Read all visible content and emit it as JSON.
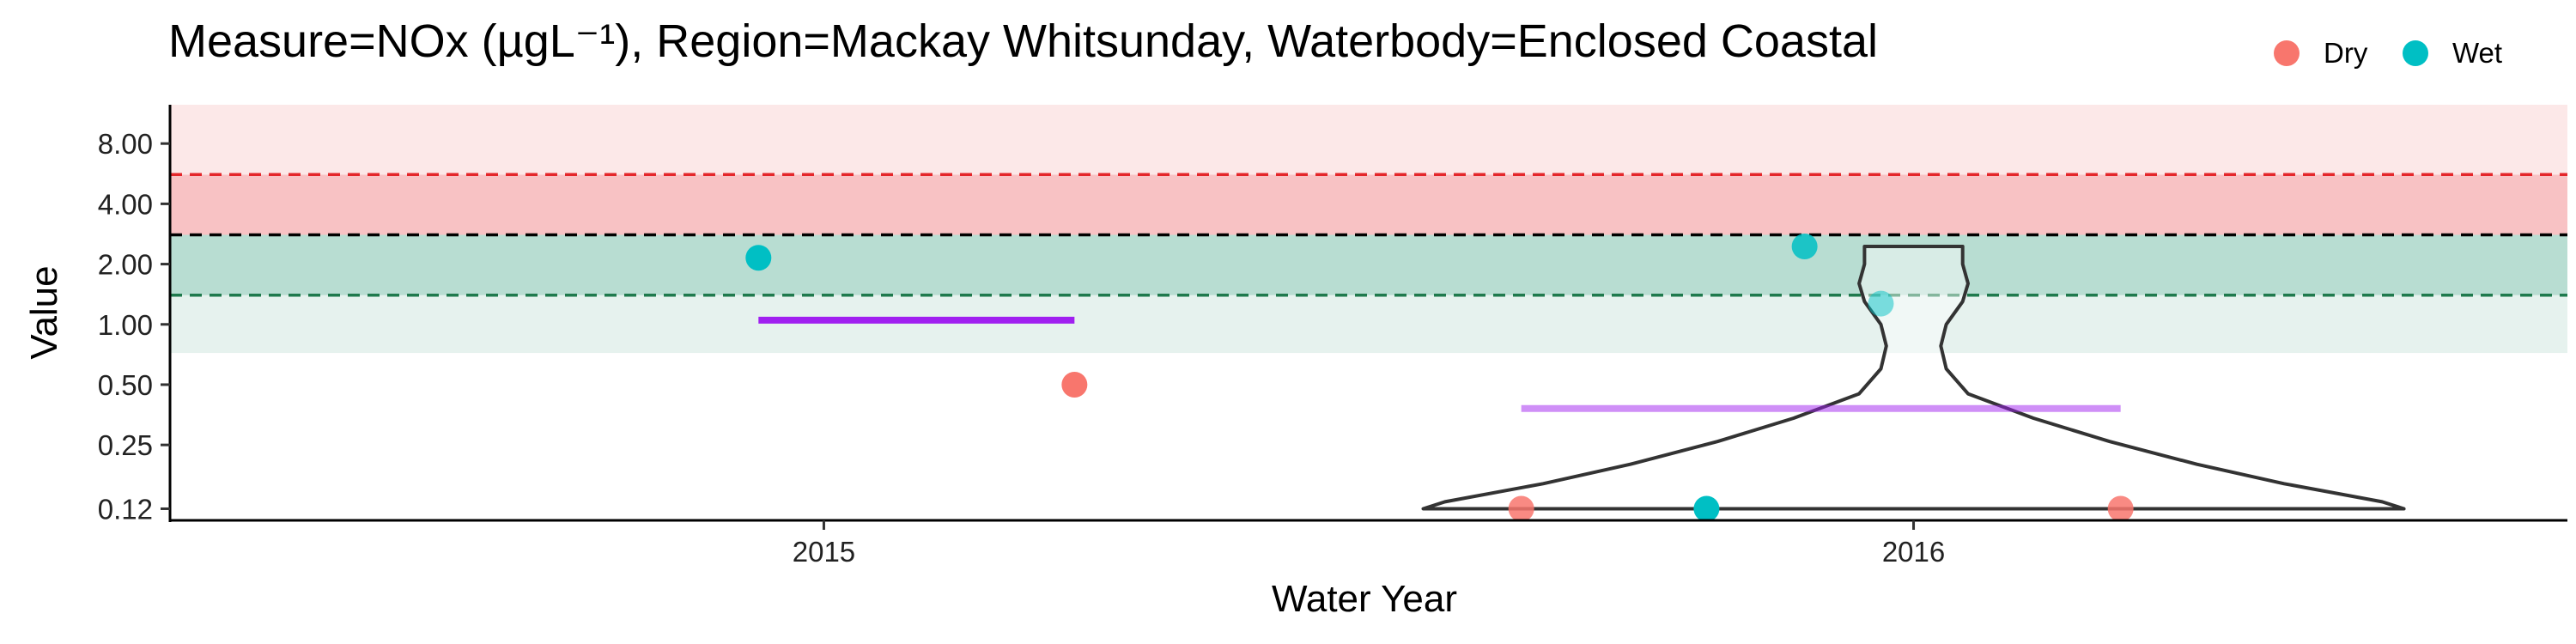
{
  "chart_data": {
    "type": "scatter",
    "title": "Measure=NOx (µgL⁻¹), Region=Mackay Whitsunday, Waterbody=Enclosed Coastal",
    "xlabel": "Water Year",
    "ylabel": "Value",
    "y_scale": "log",
    "ylim": [
      0.105,
      12.5
    ],
    "xlim": [
      2014.4,
      2016.6
    ],
    "x_ticks": [
      2015,
      2016
    ],
    "x_tick_labels": [
      "2015",
      "2016"
    ],
    "y_ticks": [
      0.12,
      0.25,
      0.5,
      1.0,
      2.0,
      4.0,
      8.0
    ],
    "y_tick_labels": [
      "0.12",
      "0.25",
      "0.50",
      "1.00",
      "2.00",
      "4.00",
      "8.00"
    ],
    "legend": {
      "position": "top-right",
      "entries": [
        {
          "label": "Dry",
          "color": "#F8766D"
        },
        {
          "label": "Wet",
          "color": "#00BFC4"
        }
      ]
    },
    "bands": [
      {
        "from": 0.72,
        "to": 2.8,
        "color": "#e6f2ee"
      },
      {
        "from": 1.4,
        "to": 2.8,
        "color": "#b8ddd2"
      },
      {
        "from": 2.8,
        "to": 5.6,
        "color": "#f8c2c4"
      },
      {
        "from": 5.6,
        "to": 12.5,
        "color": "#fce8e8"
      }
    ],
    "reference_lines": [
      {
        "value": 5.6,
        "color": "#e4262a"
      },
      {
        "value": 2.8,
        "color": "#000000"
      },
      {
        "value": 1.4,
        "color": "#1f7a4d"
      }
    ],
    "series": [
      {
        "name": "Dry",
        "color": "#F8766D",
        "points": [
          {
            "x": 2015.23,
            "y": 0.5,
            "alpha": 1
          },
          {
            "x": 2015.64,
            "y": 0.12,
            "alpha": 0.85
          },
          {
            "x": 2016.19,
            "y": 0.12,
            "alpha": 0.85
          }
        ]
      },
      {
        "name": "Wet",
        "color": "#00BFC4",
        "points": [
          {
            "x": 2014.94,
            "y": 2.15,
            "alpha": 1
          },
          {
            "x": 2015.81,
            "y": 0.12,
            "alpha": 1
          },
          {
            "x": 2015.9,
            "y": 2.45,
            "alpha": 0.85
          },
          {
            "x": 2015.97,
            "y": 1.27,
            "alpha": 0.5
          }
        ]
      }
    ],
    "medians": [
      {
        "x_from": 2014.94,
        "x_to": 2015.23,
        "value": 1.05,
        "color": "#a020f0",
        "alpha": 1
      },
      {
        "x_from": 2015.64,
        "x_to": 2016.19,
        "value": 0.38,
        "color": "#a020f0",
        "alpha": 0.5
      }
    ],
    "violin": {
      "x": 2016.0,
      "ymin": 0.12,
      "ymax": 2.45,
      "profile": [
        [
          0.12,
          0.45
        ],
        [
          0.13,
          0.43
        ],
        [
          0.16,
          0.34
        ],
        [
          0.2,
          0.26
        ],
        [
          0.26,
          0.18
        ],
        [
          0.34,
          0.11
        ],
        [
          0.45,
          0.05
        ],
        [
          0.6,
          0.03
        ],
        [
          0.78,
          0.025
        ],
        [
          1.0,
          0.03
        ],
        [
          1.3,
          0.045
        ],
        [
          1.6,
          0.05
        ],
        [
          2.0,
          0.045
        ],
        [
          2.45,
          0.045
        ]
      ]
    }
  }
}
